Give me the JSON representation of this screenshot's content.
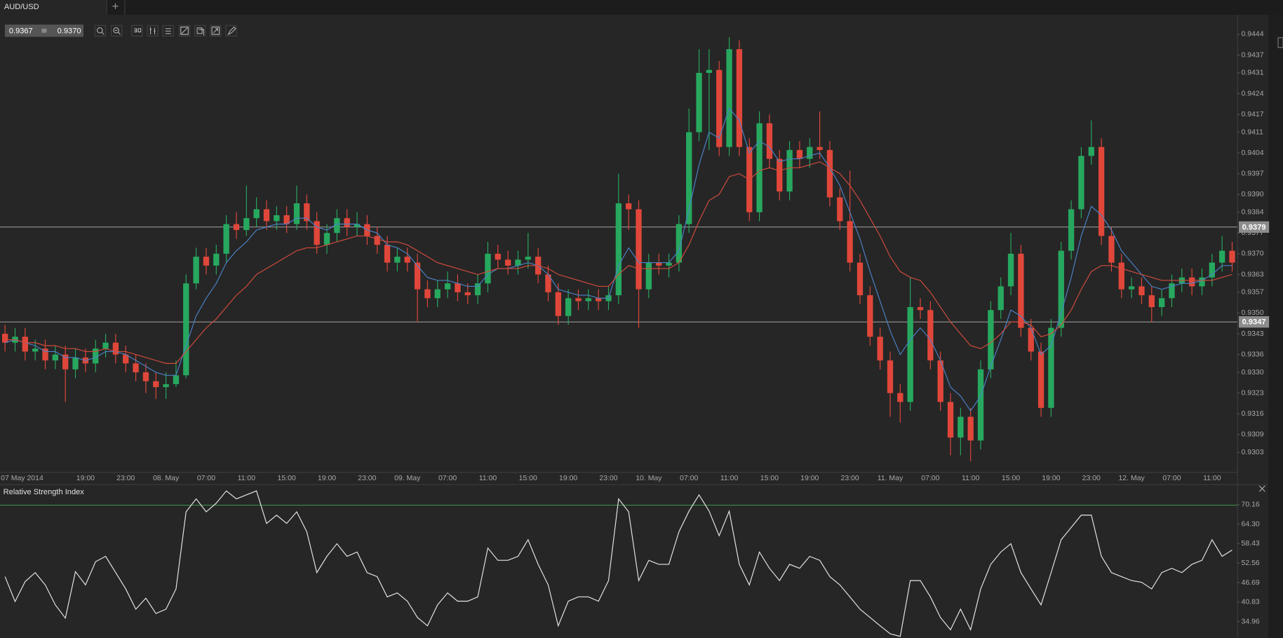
{
  "chart_data": [
    {
      "type": "candlestick",
      "symbol": "AUD/USD",
      "bid": "0.9367",
      "ask": "0.9370",
      "categories": [
        "07 May 2014",
        null,
        null,
        null,
        null,
        null,
        null,
        null,
        "19:00",
        null,
        null,
        null,
        "23:00",
        null,
        null,
        null,
        "08. May",
        null,
        null,
        null,
        "07:00",
        null,
        null,
        null,
        "11:00",
        null,
        null,
        null,
        "15:00",
        null,
        null,
        null,
        "19:00",
        null,
        null,
        null,
        "23:00",
        null,
        null,
        null,
        "09. May",
        null,
        null,
        null,
        "07:00",
        null,
        null,
        null,
        "11:00",
        null,
        null,
        null,
        "15:00",
        null,
        null,
        null,
        "19:00",
        null,
        null,
        null,
        "23:00",
        null,
        null,
        null,
        "10. May",
        null,
        null,
        null,
        "07:00",
        null,
        null,
        null,
        "11:00",
        null,
        null,
        null,
        "15:00",
        null,
        null,
        null,
        "19:00",
        null,
        null,
        null,
        "23:00",
        null,
        null,
        null,
        "11. May",
        null,
        null,
        null,
        "07:00",
        null,
        null,
        null,
        "11:00",
        null,
        null,
        null,
        "15:00",
        null,
        null,
        null,
        "19:00",
        null,
        null,
        null,
        "23:00",
        null,
        null,
        null,
        "12. May",
        null,
        null,
        null,
        "07:00",
        null,
        null,
        null,
        "11:00",
        null,
        null
      ],
      "open": [
        0.9343,
        0.934,
        0.9342,
        0.9337,
        0.9338,
        0.9334,
        0.9336,
        0.9331,
        0.9335,
        0.9333,
        0.9338,
        0.934,
        0.9336,
        0.9333,
        0.933,
        0.9327,
        0.9325,
        0.9326,
        0.9329,
        0.936,
        0.9369,
        0.9366,
        0.937,
        0.938,
        0.9378,
        0.9382,
        0.9385,
        0.9381,
        0.9383,
        0.938,
        0.9387,
        0.9381,
        0.9373,
        0.9377,
        0.9382,
        0.9379,
        0.938,
        0.9376,
        0.9373,
        0.9367,
        0.9369,
        0.9367,
        0.9358,
        0.9355,
        0.9358,
        0.936,
        0.9357,
        0.9356,
        0.936,
        0.937,
        0.9368,
        0.9366,
        0.9368,
        0.9369,
        0.9363,
        0.9357,
        0.9349,
        0.9355,
        0.9354,
        0.9355,
        0.9354,
        0.9356,
        0.9387,
        0.9385,
        0.9358,
        0.9367,
        0.9366,
        0.9367,
        0.938,
        0.9411,
        0.9431,
        0.9432,
        0.9406,
        0.9439,
        0.9406,
        0.9384,
        0.9414,
        0.9402,
        0.9391,
        0.9405,
        0.9402,
        0.9406,
        0.9405,
        0.9389,
        0.9381,
        0.9367,
        0.9356,
        0.9342,
        0.9334,
        0.9323,
        0.932,
        0.9352,
        0.9351,
        0.9334,
        0.932,
        0.9308,
        0.9315,
        0.9307,
        0.9331,
        0.9351,
        0.9359,
        0.937,
        0.9345,
        0.9337,
        0.9318,
        0.9345,
        0.9371,
        0.9385,
        0.9403,
        0.9406,
        0.9376,
        0.9367,
        0.9358,
        0.9359,
        0.9356,
        0.9352,
        0.9355,
        0.936,
        0.9362,
        0.9359,
        0.9362,
        0.9367,
        0.9371
      ],
      "high": [
        0.9346,
        0.9345,
        0.9345,
        0.9341,
        0.9341,
        0.9339,
        0.9339,
        0.9338,
        0.9338,
        0.9341,
        0.9343,
        0.9343,
        0.9339,
        0.9336,
        0.9333,
        0.933,
        0.933,
        0.9334,
        0.9363,
        0.9372,
        0.9372,
        0.9373,
        0.9383,
        0.9384,
        0.9393,
        0.9389,
        0.9388,
        0.9386,
        0.9386,
        0.9393,
        0.939,
        0.9384,
        0.938,
        0.9385,
        0.9385,
        0.9384,
        0.9383,
        0.9379,
        0.9376,
        0.9372,
        0.9372,
        0.937,
        0.9361,
        0.9361,
        0.9364,
        0.9363,
        0.936,
        0.9363,
        0.9374,
        0.9373,
        0.9371,
        0.9371,
        0.9377,
        0.9372,
        0.9366,
        0.936,
        0.9358,
        0.9358,
        0.9358,
        0.9358,
        0.9359,
        0.9397,
        0.939,
        0.9388,
        0.937,
        0.937,
        0.937,
        0.9383,
        0.9419,
        0.9439,
        0.9439,
        0.9435,
        0.9443,
        0.9442,
        0.9409,
        0.9418,
        0.9417,
        0.9405,
        0.9408,
        0.9408,
        0.9409,
        0.9418,
        0.9408,
        0.9392,
        0.9398,
        0.937,
        0.9359,
        0.9345,
        0.9337,
        0.9326,
        0.9362,
        0.9355,
        0.9354,
        0.9337,
        0.9323,
        0.9318,
        0.9318,
        0.9334,
        0.9354,
        0.9362,
        0.9377,
        0.9373,
        0.9348,
        0.934,
        0.9348,
        0.9374,
        0.9388,
        0.9406,
        0.9415,
        0.9409,
        0.9379,
        0.937,
        0.9362,
        0.9362,
        0.9359,
        0.9358,
        0.9363,
        0.9365,
        0.9365,
        0.9365,
        0.937,
        0.9376,
        0.9374
      ],
      "low": [
        0.9337,
        0.9337,
        0.9334,
        0.9334,
        0.9331,
        0.9331,
        0.932,
        0.9328,
        0.933,
        0.933,
        0.9335,
        0.9333,
        0.933,
        0.9327,
        0.9323,
        0.9321,
        0.9321,
        0.9325,
        0.9328,
        0.9358,
        0.9363,
        0.9363,
        0.9367,
        0.9375,
        0.9376,
        0.9379,
        0.9378,
        0.9378,
        0.9377,
        0.9378,
        0.9378,
        0.937,
        0.937,
        0.9374,
        0.9376,
        0.9376,
        0.9373,
        0.937,
        0.9364,
        0.9364,
        0.9364,
        0.9347,
        0.9352,
        0.9352,
        0.9355,
        0.9354,
        0.9353,
        0.9353,
        0.9357,
        0.9365,
        0.9363,
        0.9363,
        0.9365,
        0.936,
        0.9354,
        0.9346,
        0.9346,
        0.9351,
        0.9351,
        0.9351,
        0.9351,
        0.9353,
        0.9378,
        0.9345,
        0.9355,
        0.9363,
        0.9362,
        0.9364,
        0.9377,
        0.9408,
        0.9405,
        0.9403,
        0.9403,
        0.9403,
        0.9381,
        0.9381,
        0.9399,
        0.9388,
        0.9388,
        0.9399,
        0.9399,
        0.9402,
        0.9386,
        0.9378,
        0.9364,
        0.9353,
        0.9339,
        0.9331,
        0.9315,
        0.9313,
        0.9317,
        0.9348,
        0.9331,
        0.9317,
        0.9302,
        0.9302,
        0.93,
        0.9304,
        0.9328,
        0.9348,
        0.9356,
        0.9342,
        0.9334,
        0.9315,
        0.9315,
        0.9342,
        0.9368,
        0.9382,
        0.94,
        0.9373,
        0.9364,
        0.9355,
        0.9355,
        0.9353,
        0.9347,
        0.9349,
        0.9352,
        0.9357,
        0.9356,
        0.9356,
        0.9359,
        0.9364,
        0.9364
      ],
      "close": [
        0.934,
        0.9342,
        0.9337,
        0.9338,
        0.9334,
        0.9336,
        0.9331,
        0.9335,
        0.9333,
        0.9338,
        0.934,
        0.9336,
        0.9333,
        0.933,
        0.9327,
        0.9325,
        0.9326,
        0.9329,
        0.936,
        0.9369,
        0.9366,
        0.937,
        0.938,
        0.9378,
        0.9382,
        0.9385,
        0.9381,
        0.9383,
        0.938,
        0.9387,
        0.9381,
        0.9373,
        0.9377,
        0.9382,
        0.9379,
        0.938,
        0.9376,
        0.9373,
        0.9367,
        0.9369,
        0.9367,
        0.9358,
        0.9355,
        0.9358,
        0.936,
        0.9357,
        0.9356,
        0.936,
        0.937,
        0.9368,
        0.9366,
        0.9368,
        0.9369,
        0.9363,
        0.9357,
        0.9349,
        0.9355,
        0.9354,
        0.9355,
        0.9354,
        0.9356,
        0.9387,
        0.9385,
        0.9358,
        0.9367,
        0.9366,
        0.9367,
        0.938,
        0.9411,
        0.9431,
        0.9432,
        0.9406,
        0.9439,
        0.9406,
        0.9384,
        0.9414,
        0.9402,
        0.9391,
        0.9405,
        0.9402,
        0.9406,
        0.9405,
        0.9389,
        0.9381,
        0.9367,
        0.9356,
        0.9342,
        0.9334,
        0.9323,
        0.932,
        0.9352,
        0.9351,
        0.9334,
        0.932,
        0.9308,
        0.9315,
        0.9307,
        0.9331,
        0.9351,
        0.9359,
        0.937,
        0.9345,
        0.9337,
        0.9318,
        0.9345,
        0.9371,
        0.9385,
        0.9403,
        0.9406,
        0.9376,
        0.9367,
        0.9358,
        0.9359,
        0.9356,
        0.9352,
        0.9355,
        0.936,
        0.9362,
        0.9359,
        0.9362,
        0.9367,
        0.9371,
        0.9367
      ],
      "up_color": "#27a85f",
      "down_color": "#e0473a",
      "ma_lines": [
        {
          "color": "#4a82c6",
          "values": [
            0.934,
            0.9341,
            0.934,
            0.9339,
            0.9337,
            0.9337,
            0.9335,
            0.9335,
            0.9334,
            0.9335,
            0.9337,
            0.9337,
            0.9336,
            0.9334,
            0.9332,
            0.933,
            0.9329,
            0.9329,
            0.9339,
            0.9349,
            0.9355,
            0.936,
            0.9367,
            0.9371,
            0.9374,
            0.9378,
            0.9379,
            0.938,
            0.938,
            0.9382,
            0.9382,
            0.9379,
            0.9378,
            0.938,
            0.938,
            0.938,
            0.9378,
            0.9377,
            0.9373,
            0.9372,
            0.937,
            0.9366,
            0.9362,
            0.9361,
            0.9361,
            0.936,
            0.9359,
            0.9359,
            0.9363,
            0.9365,
            0.9365,
            0.9366,
            0.9367,
            0.9366,
            0.9363,
            0.9358,
            0.9357,
            0.9356,
            0.9356,
            0.9355,
            0.9355,
            0.9366,
            0.9372,
            0.9367,
            0.9367,
            0.9367,
            0.9367,
            0.9371,
            0.9385,
            0.94,
            0.9411,
            0.9409,
            0.9419,
            0.9415,
            0.9404,
            0.9408,
            0.9406,
            0.9401,
            0.9402,
            0.9402,
            0.9403,
            0.9404,
            0.9399,
            0.9393,
            0.9384,
            0.9375,
            0.9364,
            0.9354,
            0.9344,
            0.9336,
            0.9341,
            0.9345,
            0.9341,
            0.9334,
            0.9325,
            0.9322,
            0.9317,
            0.9322,
            0.9332,
            0.9341,
            0.9351,
            0.9349,
            0.9345,
            0.9336,
            0.9339,
            0.935,
            0.9362,
            0.9376,
            0.9386,
            0.9383,
            0.9378,
            0.9371,
            0.9367,
            0.9363,
            0.9359,
            0.9358,
            0.9359,
            0.936,
            0.936,
            0.9361,
            0.9363,
            0.9366,
            0.9366
          ]
        },
        {
          "color": "#d24b3c",
          "values": [
            0.9341,
            0.9341,
            0.934,
            0.934,
            0.9339,
            0.9339,
            0.9338,
            0.9338,
            0.9337,
            0.9337,
            0.9338,
            0.9337,
            0.9337,
            0.9336,
            0.9335,
            0.9334,
            0.9333,
            0.9333,
            0.9337,
            0.9341,
            0.9345,
            0.9348,
            0.9352,
            0.9356,
            0.9359,
            0.9363,
            0.9365,
            0.9367,
            0.9369,
            0.9371,
            0.9372,
            0.9372,
            0.9373,
            0.9374,
            0.9375,
            0.9376,
            0.9376,
            0.9375,
            0.9374,
            0.9374,
            0.9373,
            0.9371,
            0.9369,
            0.9367,
            0.9366,
            0.9365,
            0.9364,
            0.9363,
            0.9364,
            0.9365,
            0.9365,
            0.9365,
            0.9366,
            0.9366,
            0.9365,
            0.9363,
            0.9362,
            0.9361,
            0.936,
            0.9359,
            0.9359,
            0.9363,
            0.9366,
            0.9365,
            0.9365,
            0.9365,
            0.9365,
            0.9367,
            0.9373,
            0.9381,
            0.9388,
            0.939,
            0.9396,
            0.9397,
            0.9395,
            0.9398,
            0.9399,
            0.9398,
            0.9399,
            0.9399,
            0.94,
            0.9401,
            0.9399,
            0.9397,
            0.9393,
            0.9388,
            0.9382,
            0.9376,
            0.9369,
            0.9364,
            0.9362,
            0.9361,
            0.9357,
            0.9352,
            0.9347,
            0.9343,
            0.9339,
            0.9338,
            0.934,
            0.9343,
            0.9347,
            0.9347,
            0.9346,
            0.9342,
            0.9343,
            0.9346,
            0.9351,
            0.9358,
            0.9364,
            0.9366,
            0.9366,
            0.9365,
            0.9364,
            0.9363,
            0.9362,
            0.9361,
            0.9361,
            0.9361,
            0.9361,
            0.9361,
            0.9361,
            0.9362,
            0.9363
          ]
        }
      ],
      "ylim": [
        0.92964,
        0.94506
      ],
      "yticks": [
        0.9444,
        0.9437,
        0.9431,
        0.9424,
        0.9417,
        0.9411,
        0.9404,
        0.9397,
        {
          "value": 0.939,
          "label": "0.9390"
        },
        0.9384,
        0.9377,
        {
          "value": 0.937,
          "label": "0.9370"
        },
        0.9363,
        0.9357,
        {
          "value": 0.935,
          "label": "0.9350"
        },
        0.9343,
        0.9336,
        {
          "value": 0.933,
          "label": "0.9330"
        },
        0.9323,
        0.9316,
        0.9309,
        0.9303
      ],
      "price_lines": [
        0.9379,
        0.9347
      ]
    },
    {
      "type": "line",
      "title": "Relative Strength Index",
      "color": "#e6e6e6",
      "values": [
        48.5,
        41,
        47,
        49.7,
        46,
        40,
        36,
        50,
        46,
        53,
        54.6,
        49.7,
        44.8,
        38.7,
        42,
        37.4,
        38.7,
        44.8,
        68,
        71.9,
        68,
        70.6,
        74.3,
        71.9,
        73.1,
        74.3,
        64.5,
        67,
        64.5,
        68,
        62,
        49.7,
        54.6,
        58.4,
        54.6,
        55.9,
        49.7,
        48.5,
        42.4,
        43.6,
        41.1,
        36.2,
        33.7,
        40,
        43.6,
        41.1,
        41.1,
        42.4,
        57.1,
        53.4,
        53.4,
        54.6,
        59.6,
        52.2,
        46,
        33.7,
        41.1,
        42.4,
        42.4,
        41.1,
        47.3,
        71.9,
        68,
        47.3,
        53.4,
        52.2,
        52.2,
        62,
        68.2,
        73.1,
        68.2,
        60.8,
        68.2,
        52.2,
        46,
        55.9,
        51,
        47.3,
        52.2,
        51,
        54.6,
        53.4,
        48.5,
        46,
        42.4,
        38.7,
        36.2,
        33.7,
        31.3,
        30.5,
        47.3,
        47.3,
        42.4,
        36.2,
        32.5,
        38.7,
        32.5,
        44.8,
        52.2,
        55.9,
        58.4,
        49.7,
        44.8,
        40,
        49.7,
        59.6,
        63.3,
        67,
        67,
        54.6,
        49.7,
        48.5,
        47.3,
        46.8,
        44.8,
        49.7,
        51,
        49.7,
        52.2,
        53.4,
        59.6,
        54.6,
        56.5
      ],
      "ylim": [
        30.04,
        75.82
      ],
      "yticks": [
        70.16,
        {
          "value": 64.3,
          "label": "64.30"
        },
        58.43,
        52.56,
        46.69,
        40.83,
        34.96
      ],
      "levels": [
        70
      ],
      "level_color": "#3d8c48"
    }
  ]
}
